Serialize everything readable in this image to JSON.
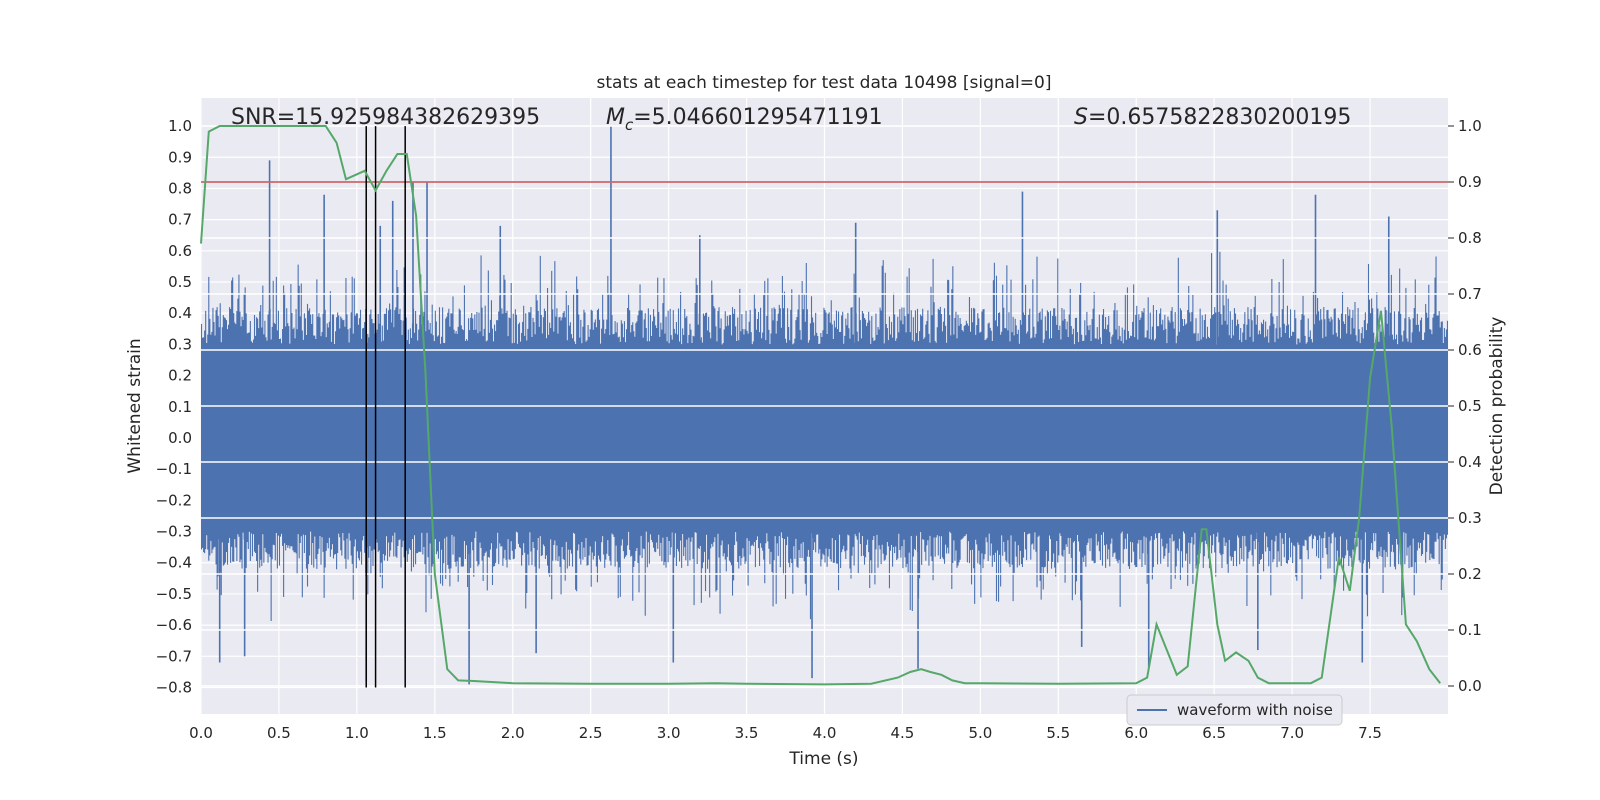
{
  "chart_data": {
    "type": "line",
    "title": "stats at each timestep for test data 10498 [signal=0]",
    "xlabel": "Time (s)",
    "ylabel_left": "Whitened strain",
    "ylabel_right": "Detection probability",
    "xlim": [
      0,
      8
    ],
    "ylim_left": [
      -0.885,
      1.09
    ],
    "ylim_right": [
      -0.05,
      1.05
    ],
    "x_ticks": [
      "0.0",
      "0.5",
      "1.0",
      "1.5",
      "2.0",
      "2.5",
      "3.0",
      "3.5",
      "4.0",
      "4.5",
      "5.0",
      "5.5",
      "6.0",
      "6.5",
      "7.0",
      "7.5"
    ],
    "y_ticks_left": [
      "1.0",
      "0.9",
      "0.8",
      "0.7",
      "0.6",
      "0.5",
      "0.4",
      "0.3",
      "0.2",
      "0.1",
      "0.0",
      "−0.1",
      "−0.2",
      "−0.3",
      "−0.4",
      "−0.5",
      "−0.6",
      "−0.7",
      "−0.8"
    ],
    "y_ticks_right": [
      "1.0",
      "0.9",
      "0.8",
      "0.7",
      "0.6",
      "0.5",
      "0.4",
      "0.3",
      "0.2",
      "0.1",
      "0.0"
    ],
    "grid": true,
    "legend": {
      "location": "lower-right",
      "entries": [
        "waveform with noise"
      ]
    },
    "annotations": {
      "snr": "SNR=15.925984382629395",
      "mc_symbol": "M",
      "mc_sub": "c",
      "mc_value": "=5.046601295471191",
      "s_symbol": "S",
      "s_value": "=0.6575822830200195"
    },
    "threshold": {
      "axis": "right",
      "value": 0.9,
      "color": "#c44e52"
    },
    "vertical_markers": [
      1.06,
      1.12,
      1.31
    ],
    "colors": {
      "waveform": "#4c72b0",
      "probability": "#55a868",
      "threshold": "#c44e52",
      "markers": "#000000",
      "background": "#eaeaf2"
    },
    "series": [
      {
        "name": "waveform with noise",
        "axis": "left",
        "kind": "noise-envelope",
        "dense_upper_mean": 0.3,
        "dense_lower_mean": -0.3,
        "spikes": [
          [
            0.44,
            0.89
          ],
          [
            0.79,
            0.78
          ],
          [
            1.15,
            0.68
          ],
          [
            1.23,
            0.76
          ],
          [
            1.36,
            0.82
          ],
          [
            1.45,
            0.82
          ],
          [
            1.92,
            0.68
          ],
          [
            2.63,
            1.0
          ],
          [
            3.2,
            0.65
          ],
          [
            4.2,
            0.69
          ],
          [
            5.27,
            0.79
          ],
          [
            6.52,
            0.73
          ],
          [
            7.15,
            0.78
          ],
          [
            7.62,
            0.71
          ],
          [
            0.12,
            -0.72
          ],
          [
            0.28,
            -0.7
          ],
          [
            1.06,
            -0.78
          ],
          [
            1.72,
            -0.79
          ],
          [
            2.15,
            -0.69
          ],
          [
            3.03,
            -0.72
          ],
          [
            3.92,
            -0.77
          ],
          [
            4.6,
            -0.74
          ],
          [
            5.65,
            -0.67
          ],
          [
            6.08,
            -0.74
          ],
          [
            6.78,
            -0.68
          ],
          [
            7.45,
            -0.72
          ]
        ]
      },
      {
        "name": "",
        "axis": "right",
        "x": [
          0.0,
          0.05,
          0.12,
          0.2,
          0.5,
          0.8,
          0.87,
          0.93,
          1.05,
          1.12,
          1.19,
          1.26,
          1.32,
          1.38,
          1.44,
          1.5,
          1.58,
          1.65,
          1.75,
          2.0,
          2.5,
          3.0,
          3.3,
          3.5,
          4.0,
          4.3,
          4.47,
          4.55,
          4.62,
          4.68,
          4.75,
          4.82,
          4.9,
          5.0,
          5.5,
          6.0,
          6.07,
          6.13,
          6.26,
          6.33,
          6.42,
          6.45,
          6.52,
          6.57,
          6.64,
          6.72,
          6.78,
          6.85,
          7.0,
          7.12,
          7.19,
          7.3,
          7.37,
          7.43,
          7.5,
          7.57,
          7.64,
          7.73,
          7.8,
          7.88,
          7.95
        ],
        "values": [
          0.79,
          0.99,
          1.0,
          1.0,
          1.0,
          1.0,
          0.97,
          0.905,
          0.92,
          0.885,
          0.92,
          0.95,
          0.95,
          0.84,
          0.56,
          0.2,
          0.03,
          0.01,
          0.009,
          0.005,
          0.004,
          0.004,
          0.005,
          0.004,
          0.003,
          0.004,
          0.015,
          0.025,
          0.03,
          0.025,
          0.02,
          0.01,
          0.005,
          0.005,
          0.004,
          0.005,
          0.015,
          0.11,
          0.02,
          0.035,
          0.28,
          0.28,
          0.11,
          0.045,
          0.06,
          0.045,
          0.015,
          0.005,
          0.005,
          0.005,
          0.015,
          0.23,
          0.17,
          0.3,
          0.55,
          0.67,
          0.46,
          0.11,
          0.08,
          0.03,
          0.005
        ]
      }
    ]
  }
}
